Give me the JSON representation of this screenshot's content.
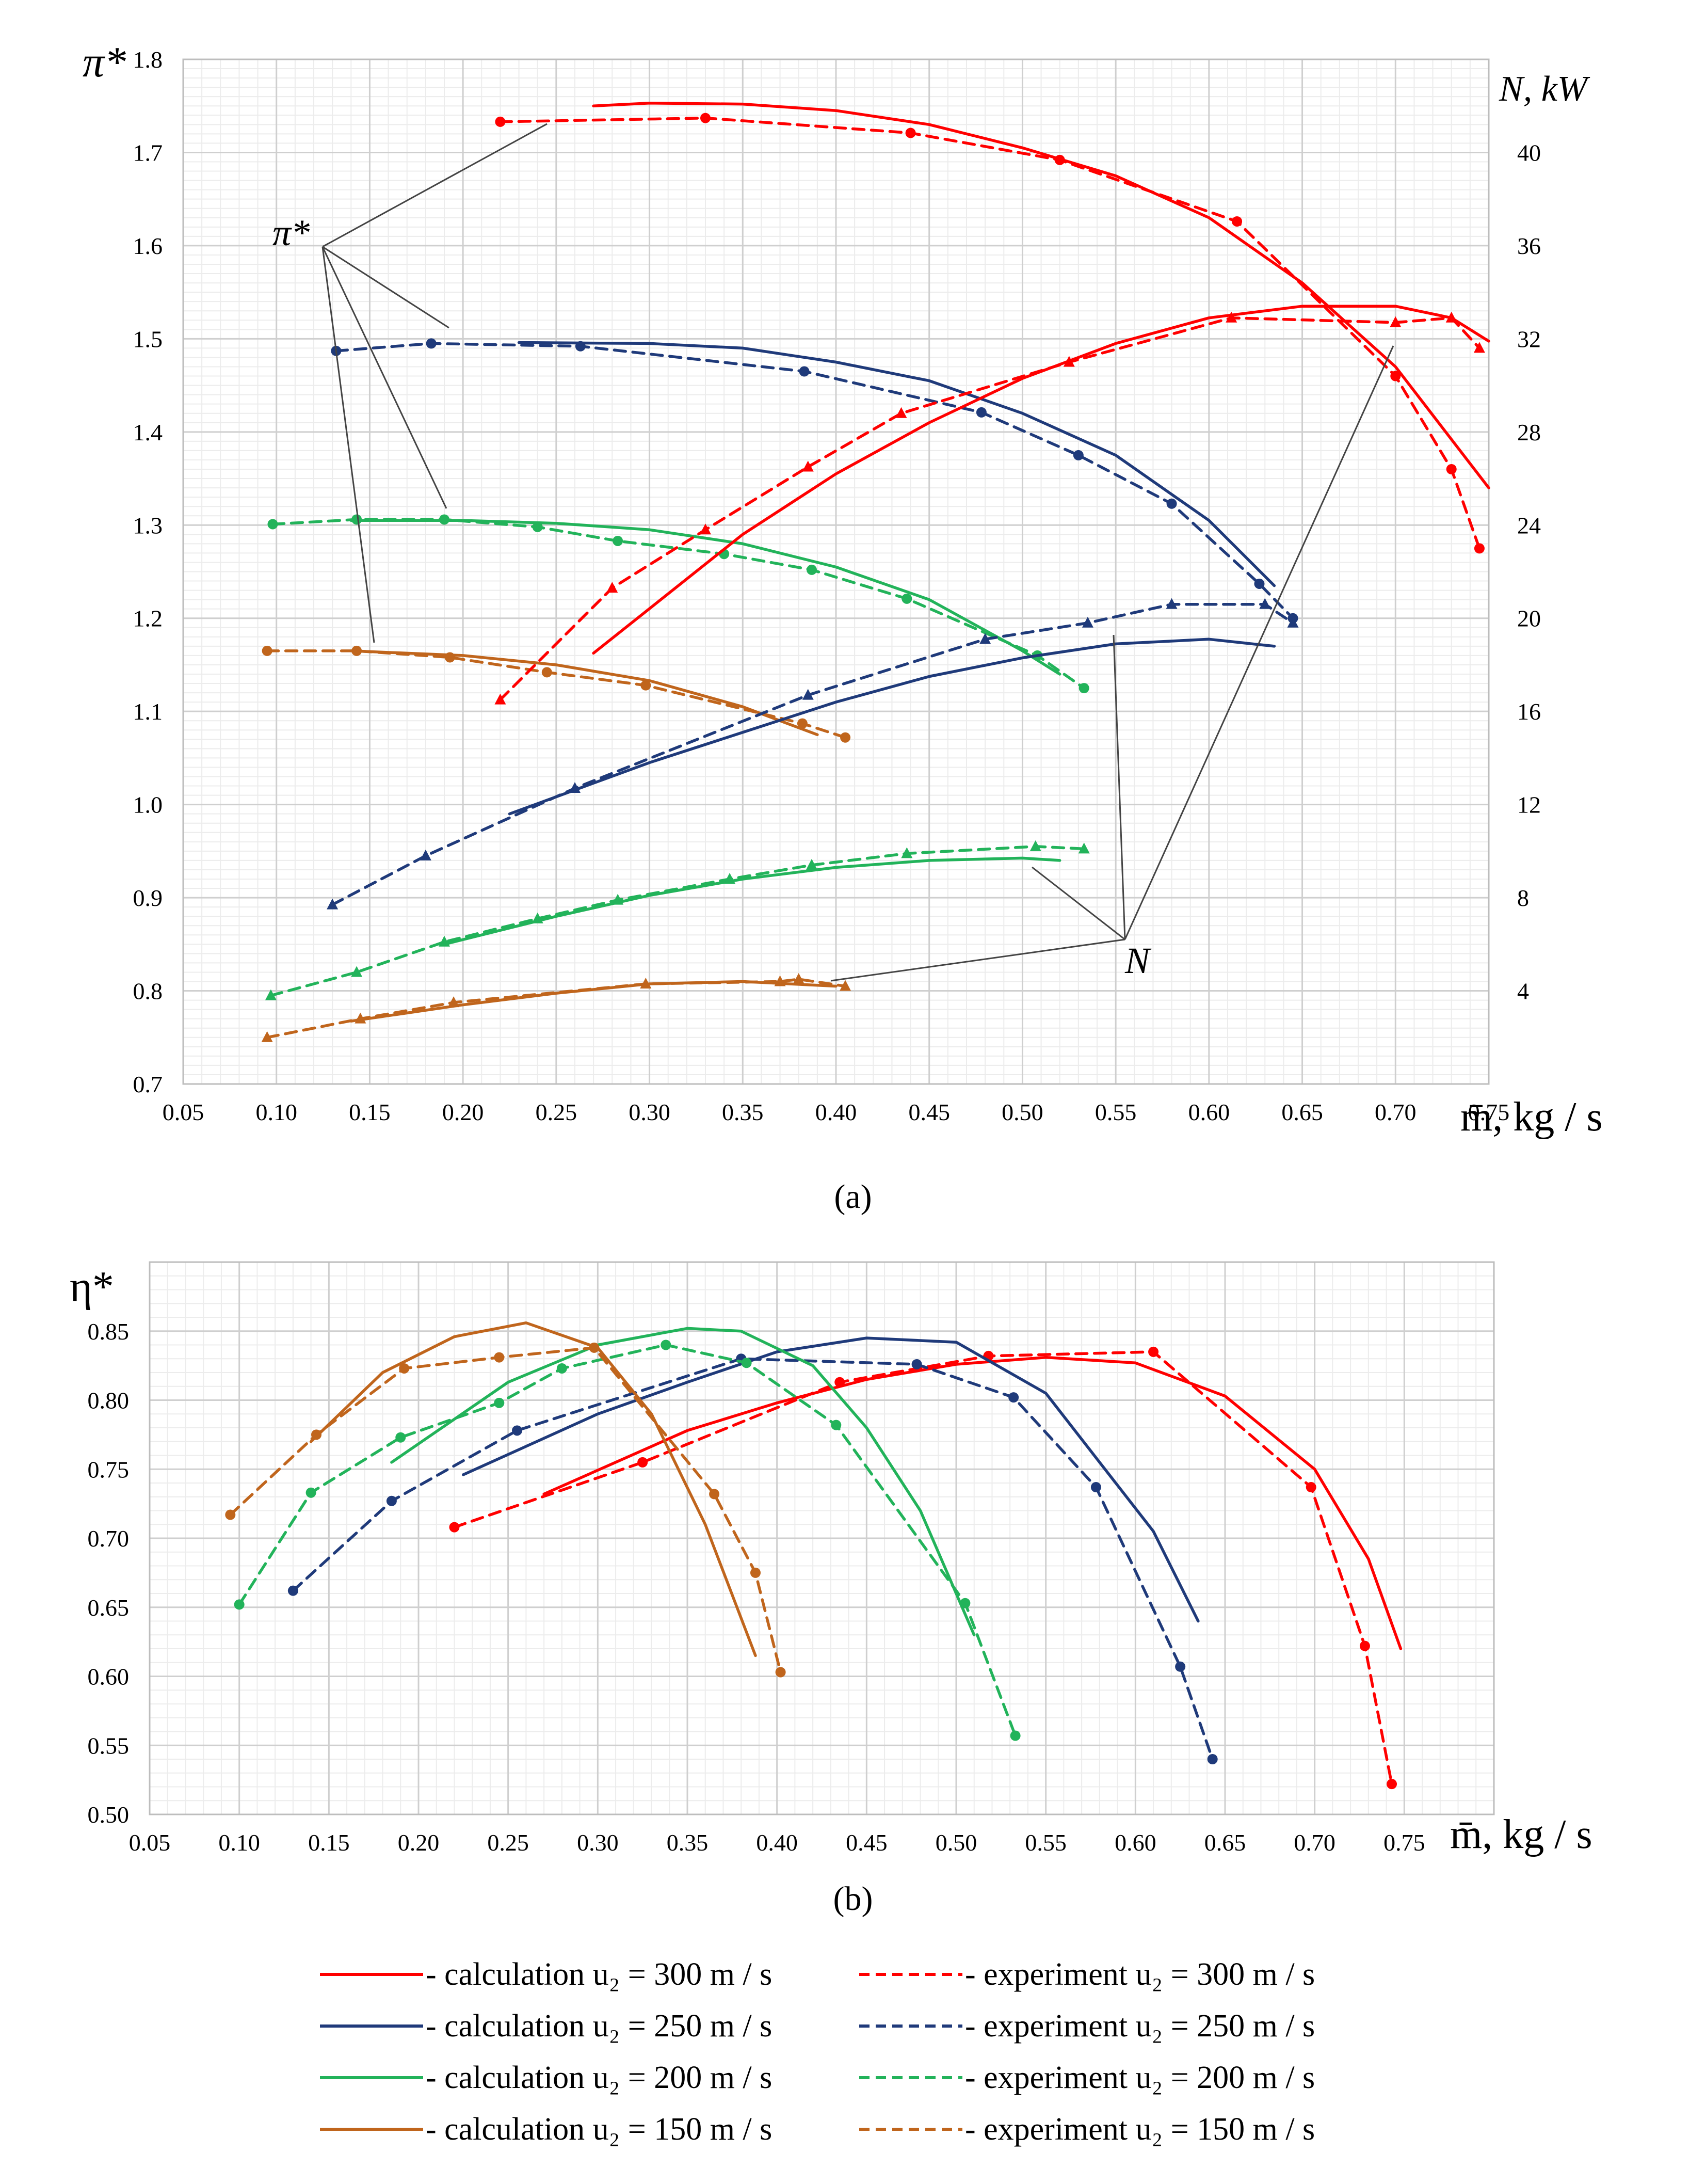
{
  "figure": {
    "panel_a_label": "(a)",
    "panel_b_label": "(b)",
    "callout_pi": "π*",
    "callout_N": "N"
  },
  "legend": [
    {
      "style": "solid",
      "color": "#ff0000",
      "text": "- calculation u₂ = 300 m / s"
    },
    {
      "style": "dashed",
      "color": "#ff0000",
      "text": "- experiment u₂ = 300 m / s"
    },
    {
      "style": "solid",
      "color": "#1f3a7a",
      "text": "- calculation u₂ = 250 m / s"
    },
    {
      "style": "dashed",
      "color": "#1f3a7a",
      "text": "- experiment u₂ = 250 m / s"
    },
    {
      "style": "solid",
      "color": "#22b35a",
      "text": "- calculation u₂ = 200 m / s"
    },
    {
      "style": "dashed",
      "color": "#22b35a",
      "text": "- experiment u₂ = 200 m / s"
    },
    {
      "style": "solid",
      "color": "#c0651c",
      "text": "- calculation u₂ = 150 m / s"
    },
    {
      "style": "dashed",
      "color": "#c0651c",
      "text": "- experiment u₂ = 150 m / s"
    }
  ],
  "chart_data": [
    {
      "type": "line",
      "panel": "(a)",
      "ylabel": "π*",
      "y2label": "N, kW",
      "xlabel": "m̄, kg / s",
      "xlim": [
        0.05,
        0.75
      ],
      "xticks": [
        "0.05",
        "0.10",
        "0.15",
        "0.20",
        "0.25",
        "0.30",
        "0.35",
        "0.40",
        "0.45",
        "0.50",
        "0.55",
        "0.60",
        "0.65",
        "0.70",
        "0.75"
      ],
      "ylim": [
        0.7,
        1.8
      ],
      "yticks": [
        "0.7",
        "0.8",
        "0.9",
        "1.0",
        "1.1",
        "1.2",
        "1.3",
        "1.4",
        "1.5",
        "1.6",
        "1.7",
        "1.8"
      ],
      "y2lim": [
        0,
        44
      ],
      "y2ticks": [
        "4",
        "8",
        "12",
        "16",
        "20",
        "24",
        "28",
        "32",
        "36",
        "40"
      ],
      "grid": true,
      "series": [
        {
          "name": "calc π* 300",
          "color": "#ff0000",
          "dash": false,
          "axis": "left",
          "marker": "none",
          "x": [
            0.27,
            0.3,
            0.35,
            0.4,
            0.45,
            0.5,
            0.55,
            0.6,
            0.65,
            0.7,
            0.75
          ],
          "y": [
            1.75,
            1.753,
            1.752,
            1.745,
            1.73,
            1.705,
            1.675,
            1.63,
            1.56,
            1.47,
            1.34
          ]
        },
        {
          "name": "exp π* 300",
          "color": "#ff0000",
          "dash": true,
          "axis": "left",
          "marker": "circle",
          "x": [
            0.22,
            0.33,
            0.44,
            0.52,
            0.615,
            0.7,
            0.73,
            0.745
          ],
          "y": [
            1.733,
            1.737,
            1.721,
            1.692,
            1.626,
            1.46,
            1.36,
            1.275
          ]
        },
        {
          "name": "calc π* 250",
          "color": "#1f3a7a",
          "dash": false,
          "axis": "left",
          "marker": "none",
          "x": [
            0.23,
            0.3,
            0.35,
            0.4,
            0.45,
            0.5,
            0.55,
            0.6,
            0.635
          ],
          "y": [
            1.496,
            1.495,
            1.49,
            1.475,
            1.455,
            1.42,
            1.375,
            1.305,
            1.235
          ]
        },
        {
          "name": "exp π* 250",
          "color": "#1f3a7a",
          "dash": true,
          "axis": "left",
          "marker": "circle",
          "x": [
            0.132,
            0.183,
            0.263,
            0.383,
            0.478,
            0.53,
            0.58,
            0.627,
            0.645
          ],
          "y": [
            1.487,
            1.495,
            1.492,
            1.465,
            1.421,
            1.375,
            1.323,
            1.237,
            1.2
          ]
        },
        {
          "name": "calc π* 200",
          "color": "#22b35a",
          "dash": false,
          "axis": "left",
          "marker": "none",
          "x": [
            0.14,
            0.2,
            0.25,
            0.3,
            0.35,
            0.4,
            0.45,
            0.5,
            0.52
          ],
          "y": [
            1.305,
            1.305,
            1.302,
            1.295,
            1.28,
            1.255,
            1.22,
            1.165,
            1.14
          ]
        },
        {
          "name": "exp π* 200",
          "color": "#22b35a",
          "dash": true,
          "axis": "left",
          "marker": "circle",
          "x": [
            0.098,
            0.143,
            0.19,
            0.24,
            0.283,
            0.34,
            0.387,
            0.438,
            0.508,
            0.533
          ],
          "y": [
            1.301,
            1.306,
            1.306,
            1.298,
            1.283,
            1.269,
            1.252,
            1.221,
            1.16,
            1.125
          ]
        },
        {
          "name": "calc π* 150",
          "color": "#c0651c",
          "dash": false,
          "axis": "left",
          "marker": "none",
          "x": [
            0.14,
            0.2,
            0.25,
            0.3,
            0.35,
            0.39
          ],
          "y": [
            1.165,
            1.16,
            1.15,
            1.133,
            1.105,
            1.075
          ]
        },
        {
          "name": "exp π* 150",
          "color": "#c0651c",
          "dash": true,
          "axis": "left",
          "marker": "circle",
          "x": [
            0.095,
            0.143,
            0.193,
            0.245,
            0.298,
            0.382,
            0.405
          ],
          "y": [
            1.165,
            1.165,
            1.158,
            1.142,
            1.128,
            1.087,
            1.072
          ]
        },
        {
          "name": "calc N 300",
          "color": "#ff0000",
          "dash": false,
          "axis": "right",
          "marker": "none",
          "x": [
            0.27,
            0.35,
            0.4,
            0.45,
            0.5,
            0.55,
            0.6,
            0.65,
            0.7,
            0.73,
            0.75
          ],
          "y": [
            18.5,
            23.6,
            26.2,
            28.4,
            30.3,
            31.8,
            32.9,
            33.4,
            33.4,
            32.9,
            31.9
          ]
        },
        {
          "name": "exp N 300",
          "color": "#ff0000",
          "dash": true,
          "axis": "right",
          "marker": "triangle",
          "x": [
            0.22,
            0.28,
            0.33,
            0.385,
            0.435,
            0.525,
            0.612,
            0.7,
            0.73,
            0.745
          ],
          "y": [
            16.5,
            21.3,
            23.8,
            26.5,
            28.8,
            31.0,
            32.9,
            32.7,
            32.9,
            31.6
          ]
        },
        {
          "name": "calc N 250",
          "color": "#1f3a7a",
          "dash": false,
          "axis": "right",
          "marker": "none",
          "x": [
            0.225,
            0.3,
            0.35,
            0.4,
            0.45,
            0.5,
            0.55,
            0.6,
            0.635
          ],
          "y": [
            11.6,
            13.8,
            15.1,
            16.4,
            17.5,
            18.3,
            18.9,
            19.1,
            18.8
          ]
        },
        {
          "name": "exp N 250",
          "color": "#1f3a7a",
          "dash": true,
          "axis": "right",
          "marker": "triangle",
          "x": [
            0.13,
            0.18,
            0.26,
            0.385,
            0.48,
            0.535,
            0.58,
            0.63,
            0.645
          ],
          "y": [
            7.7,
            9.8,
            12.7,
            16.7,
            19.1,
            19.8,
            20.6,
            20.6,
            19.8
          ]
        },
        {
          "name": "calc N 200",
          "color": "#22b35a",
          "dash": false,
          "axis": "right",
          "marker": "none",
          "x": [
            0.19,
            0.25,
            0.3,
            0.35,
            0.4,
            0.45,
            0.5,
            0.52
          ],
          "y": [
            6.0,
            7.2,
            8.1,
            8.8,
            9.3,
            9.6,
            9.7,
            9.6
          ]
        },
        {
          "name": "exp N 200",
          "color": "#22b35a",
          "dash": true,
          "axis": "right",
          "marker": "triangle",
          "x": [
            0.097,
            0.143,
            0.19,
            0.24,
            0.283,
            0.343,
            0.387,
            0.438,
            0.507,
            0.533
          ],
          "y": [
            3.8,
            4.8,
            6.1,
            7.1,
            7.9,
            8.8,
            9.4,
            9.9,
            10.2,
            10.1
          ]
        },
        {
          "name": "calc N 150",
          "color": "#c0651c",
          "dash": false,
          "axis": "right",
          "marker": "none",
          "x": [
            0.14,
            0.2,
            0.25,
            0.3,
            0.35,
            0.4
          ],
          "y": [
            2.7,
            3.4,
            3.9,
            4.3,
            4.4,
            4.2
          ]
        },
        {
          "name": "exp N 150",
          "color": "#c0651c",
          "dash": true,
          "axis": "right",
          "marker": "triangle",
          "x": [
            0.095,
            0.145,
            0.195,
            0.298,
            0.37,
            0.38,
            0.405
          ],
          "y": [
            2.0,
            2.8,
            3.5,
            4.3,
            4.4,
            4.5,
            4.2
          ]
        }
      ]
    },
    {
      "type": "line",
      "panel": "(b)",
      "ylabel": "η*",
      "xlabel": "m̄,  kg / s",
      "xlim": [
        0.05,
        0.8
      ],
      "xticks": [
        "0.05",
        "0.10",
        "0.15",
        "0.20",
        "0.25",
        "0.30",
        "0.35",
        "0.40",
        "0.45",
        "0.50",
        "0.55",
        "0.60",
        "0.65",
        "0.70",
        "0.75"
      ],
      "ylim": [
        0.5,
        0.9
      ],
      "yticks": [
        "0.50",
        "0.55",
        "0.60",
        "0.65",
        "0.70",
        "0.75",
        "0.80",
        "0.85"
      ],
      "grid": true,
      "series": [
        {
          "name": "calc η 300",
          "color": "#ff0000",
          "dash": false,
          "marker": "none",
          "x": [
            0.27,
            0.35,
            0.4,
            0.45,
            0.5,
            0.55,
            0.6,
            0.65,
            0.7,
            0.73,
            0.748
          ],
          "y": [
            0.732,
            0.778,
            0.798,
            0.815,
            0.826,
            0.831,
            0.827,
            0.803,
            0.75,
            0.685,
            0.62
          ]
        },
        {
          "name": "exp η 300",
          "color": "#ff0000",
          "dash": true,
          "marker": "circle",
          "x": [
            0.22,
            0.325,
            0.435,
            0.518,
            0.61,
            0.698,
            0.728,
            0.743
          ],
          "y": [
            0.708,
            0.755,
            0.813,
            0.832,
            0.835,
            0.737,
            0.622,
            0.522
          ]
        },
        {
          "name": "calc η 250",
          "color": "#1f3a7a",
          "dash": false,
          "marker": "none",
          "x": [
            0.225,
            0.3,
            0.35,
            0.4,
            0.45,
            0.5,
            0.55,
            0.58,
            0.61,
            0.635
          ],
          "y": [
            0.746,
            0.79,
            0.813,
            0.835,
            0.845,
            0.842,
            0.805,
            0.755,
            0.705,
            0.64
          ]
        },
        {
          "name": "exp η 250",
          "color": "#1f3a7a",
          "dash": true,
          "marker": "circle",
          "x": [
            0.13,
            0.185,
            0.255,
            0.38,
            0.478,
            0.532,
            0.578,
            0.625,
            0.643
          ],
          "y": [
            0.662,
            0.727,
            0.778,
            0.83,
            0.826,
            0.802,
            0.737,
            0.607,
            0.54
          ]
        },
        {
          "name": "calc η 200",
          "color": "#22b35a",
          "dash": false,
          "marker": "none",
          "x": [
            0.185,
            0.25,
            0.3,
            0.35,
            0.38,
            0.42,
            0.45,
            0.48,
            0.51
          ],
          "y": [
            0.755,
            0.813,
            0.84,
            0.852,
            0.85,
            0.825,
            0.78,
            0.72,
            0.63
          ]
        },
        {
          "name": "exp η 200",
          "color": "#22b35a",
          "dash": true,
          "marker": "circle",
          "x": [
            0.1,
            0.14,
            0.19,
            0.245,
            0.28,
            0.338,
            0.383,
            0.433,
            0.505,
            0.533
          ],
          "y": [
            0.652,
            0.733,
            0.773,
            0.798,
            0.823,
            0.84,
            0.827,
            0.782,
            0.653,
            0.557
          ]
        },
        {
          "name": "calc η 150",
          "color": "#c0651c",
          "dash": false,
          "marker": "none",
          "x": [
            0.14,
            0.18,
            0.22,
            0.26,
            0.3,
            0.33,
            0.36,
            0.388
          ],
          "y": [
            0.77,
            0.82,
            0.846,
            0.856,
            0.838,
            0.79,
            0.71,
            0.615
          ]
        },
        {
          "name": "exp η 150",
          "color": "#c0651c",
          "dash": true,
          "marker": "circle",
          "x": [
            0.095,
            0.143,
            0.192,
            0.245,
            0.298,
            0.365,
            0.388,
            0.402
          ],
          "y": [
            0.717,
            0.775,
            0.823,
            0.831,
            0.838,
            0.732,
            0.675,
            0.603
          ]
        }
      ]
    }
  ]
}
